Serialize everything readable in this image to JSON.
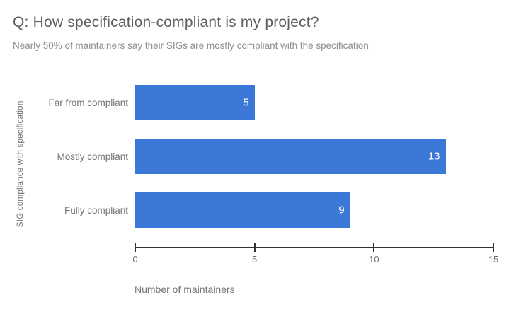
{
  "chart_data": {
    "type": "bar",
    "orientation": "horizontal",
    "title": "Q: How specification-compliant is my project?",
    "subtitle": "Nearly 50% of maintainers say their SIGs are mostly compliant with the specification.",
    "categories": [
      "Far from compliant",
      "Mostly compliant",
      "Fully compliant"
    ],
    "values": [
      5,
      13,
      9
    ],
    "xlabel": "Number of maintainers",
    "ylabel": "SIG compliance with specification",
    "xlim": [
      0,
      15
    ],
    "xticks": [
      0,
      5,
      10,
      15
    ],
    "grid": false,
    "legend": "none",
    "value_labels": "inside-end",
    "colors": {
      "bar": "#3c78d8",
      "value_label": "#ffffff",
      "axis_line": "#333333",
      "title_text": "#5f5f5f",
      "subtitle_text": "#8e8e8e",
      "label_text": "#757575"
    }
  }
}
